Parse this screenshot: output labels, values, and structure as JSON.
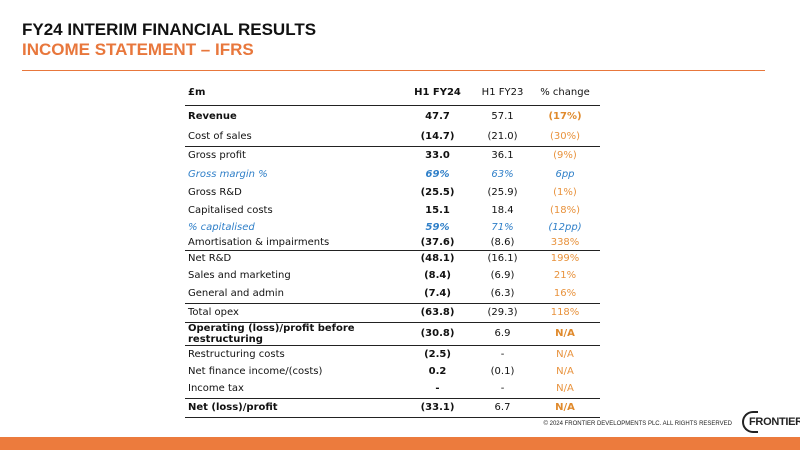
{
  "header": {
    "title": "FY24 INTERIM FINANCIAL RESULTS",
    "subtitle": "INCOME STATEMENT – IFRS"
  },
  "colors": {
    "accent": "#ec7b3d",
    "highlight_blue": "#2f7fc8"
  },
  "table": {
    "columns": [
      "£m",
      "H1 FY24",
      "H1 FY23",
      "% change"
    ],
    "rows": [
      {
        "label": "Revenue",
        "fy24": "47.7",
        "fy23": "57.1",
        "change": "(17%)"
      },
      {
        "label": "Cost of sales",
        "fy24": "(14.7)",
        "fy23": "(21.0)",
        "change": "(30%)"
      },
      {
        "label": "Gross profit",
        "fy24": "33.0",
        "fy23": "36.1",
        "change": "(9%)"
      },
      {
        "label": "Gross margin %",
        "fy24": "69%",
        "fy23": "63%",
        "change": "6pp"
      },
      {
        "label": "Gross R&D",
        "fy24": "(25.5)",
        "fy23": "(25.9)",
        "change": "(1%)"
      },
      {
        "label": "Capitalised costs",
        "fy24": "15.1",
        "fy23": "18.4",
        "change": "(18%)"
      },
      {
        "label": "% capitalised",
        "fy24": "59%",
        "fy23": "71%",
        "change": "(12pp)"
      },
      {
        "label": "Amortisation & impairments",
        "fy24": "(37.6)",
        "fy23": "(8.6)",
        "change": "338%"
      },
      {
        "label": "Net R&D",
        "fy24": "(48.1)",
        "fy23": "(16.1)",
        "change": "199%"
      },
      {
        "label": "Sales and marketing",
        "fy24": "(8.4)",
        "fy23": "(6.9)",
        "change": "21%"
      },
      {
        "label": "General and admin",
        "fy24": "(7.4)",
        "fy23": "(6.3)",
        "change": "16%"
      },
      {
        "label": "Total opex",
        "fy24": "(63.8)",
        "fy23": "(29.3)",
        "change": "118%"
      },
      {
        "label": "Operating (loss)/profit before restructuring",
        "fy24": "(30.8)",
        "fy23": "6.9",
        "change": "N/A"
      },
      {
        "label": "Restructuring costs",
        "fy24": "(2.5)",
        "fy23": "-",
        "change": "N/A"
      },
      {
        "label": "Net finance income/(costs)",
        "fy24": "0.2",
        "fy23": "(0.1)",
        "change": "N/A"
      },
      {
        "label": "Income tax",
        "fy24": "-",
        "fy23": "-",
        "change": "N/A"
      },
      {
        "label": "Net (loss)/profit",
        "fy24": "(33.1)",
        "fy23": "6.7",
        "change": "N/A"
      }
    ]
  },
  "footer": {
    "copyright": "© 2024 FRONTIER DEVELOPMENTS PLC. ALL RIGHTS RESERVED",
    "logo_text": "FRONTIER"
  }
}
